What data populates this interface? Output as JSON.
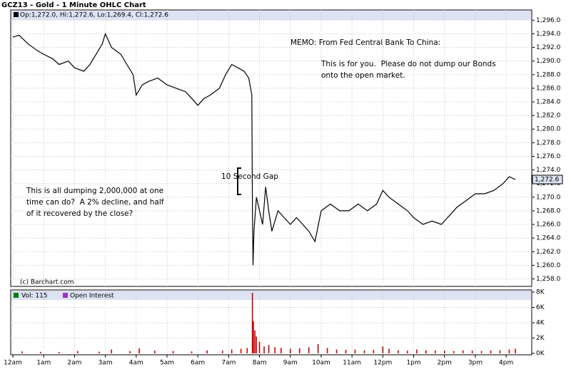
{
  "title": "GCZ13 - Gold - 1 Minute OHLC Chart",
  "chart_data": [
    {
      "type": "line",
      "legend_text": "Op:1,272.0, Hi:1,272.6, Lo:1,269.4, Cl:1,272.6",
      "copyright": "(c) Barchart.com",
      "annotations": [
        "MEMO: From Fed Central Bank To China:",
        "This is for you.  Please do not dump our Bonds",
        "onto the open market.",
        "10 Second Gap",
        "This is all dumping 2,000,000 at one",
        "time can do?  A 2% decline, and half",
        "of it recovered by the close?"
      ],
      "last_value": {
        "value": 1272.6,
        "label": "1,272.6"
      },
      "xlim": [
        -0.07,
        16.83
      ],
      "ylim": [
        1256.9,
        1297.5
      ],
      "grid": true,
      "xticks": [
        {
          "value": 0,
          "label": "12am"
        },
        {
          "value": 1,
          "label": "1am"
        },
        {
          "value": 2,
          "label": "2am"
        },
        {
          "value": 3,
          "label": "3am"
        },
        {
          "value": 4,
          "label": "4am"
        },
        {
          "value": 5,
          "label": "5am"
        },
        {
          "value": 6,
          "label": "6am"
        },
        {
          "value": 7,
          "label": "7am"
        },
        {
          "value": 8,
          "label": "8am"
        },
        {
          "value": 9,
          "label": "9am"
        },
        {
          "value": 10,
          "label": "10am"
        },
        {
          "value": 11,
          "label": "11am"
        },
        {
          "value": 12,
          "label": "12pm"
        },
        {
          "value": 13,
          "label": "1pm"
        },
        {
          "value": 14,
          "label": "2pm"
        },
        {
          "value": 15,
          "label": "3pm"
        },
        {
          "value": 16,
          "label": "4pm"
        }
      ],
      "yticks": [
        {
          "value": 1258,
          "label": "1,258.0"
        },
        {
          "value": 1260,
          "label": "1,260.0"
        },
        {
          "value": 1262,
          "label": "1,262.0"
        },
        {
          "value": 1264,
          "label": "1,264.0"
        },
        {
          "value": 1266,
          "label": "1,266.0"
        },
        {
          "value": 1268,
          "label": "1,268.0"
        },
        {
          "value": 1270,
          "label": "1,270.0"
        },
        {
          "value": 1272,
          "label": "1,272.0"
        },
        {
          "value": 1274,
          "label": "1,274.0"
        },
        {
          "value": 1276,
          "label": "1,276.0"
        },
        {
          "value": 1278,
          "label": "1,278.0"
        },
        {
          "value": 1280,
          "label": "1,280.0"
        },
        {
          "value": 1282,
          "label": "1,282.0"
        },
        {
          "value": 1284,
          "label": "1,284.0"
        },
        {
          "value": 1286,
          "label": "1,286.0"
        },
        {
          "value": 1288,
          "label": "1,288.0"
        },
        {
          "value": 1290,
          "label": "1,290.0"
        },
        {
          "value": 1292,
          "label": "1,292.0"
        },
        {
          "value": 1294,
          "label": "1,294.0"
        },
        {
          "value": 1296,
          "label": "1,296.0"
        }
      ],
      "series": [
        {
          "color": "#000000",
          "x": [
            0,
            0.2,
            0.5,
            0.8,
            1,
            1.3,
            1.5,
            1.8,
            2,
            2.3,
            2.5,
            2.7,
            2.9,
            3,
            3.2,
            3.5,
            3.7,
            3.9,
            4,
            4.2,
            4.4,
            4.7,
            5,
            5.3,
            5.6,
            5.8,
            6,
            6.2,
            6.4,
            6.7,
            6.9,
            7.1,
            7.3,
            7.5,
            7.65,
            7.75,
            7.77,
            7.79,
            7.82,
            7.9,
            8,
            8.1,
            8.2,
            8.3,
            8.4,
            8.6,
            8.8,
            9,
            9.2,
            9.4,
            9.6,
            9.8,
            10,
            10.3,
            10.6,
            10.9,
            11.2,
            11.5,
            11.8,
            12,
            12.2,
            12.5,
            12.8,
            13,
            13.3,
            13.6,
            13.9,
            14.1,
            14.4,
            14.7,
            15,
            15.3,
            15.6,
            15.9,
            16.1,
            16.3
          ],
          "values": [
            1293.5,
            1293.8,
            1292.5,
            1291.5,
            1291,
            1290.3,
            1289.5,
            1290,
            1289,
            1288.5,
            1289.5,
            1291,
            1292.5,
            1294,
            1292,
            1291,
            1289.5,
            1288,
            1285,
            1286.5,
            1287,
            1287.5,
            1286.5,
            1286,
            1285.5,
            1284.5,
            1283.5,
            1284.5,
            1285,
            1286,
            1288,
            1289.5,
            1289,
            1288.5,
            1287.5,
            1285,
            1268,
            1260,
            1265,
            1270,
            1268,
            1266,
            1271.5,
            1268,
            1265,
            1268,
            1267,
            1266,
            1267,
            1266,
            1265,
            1263.5,
            1268,
            1269,
            1268,
            1268,
            1269,
            1268,
            1269,
            1271,
            1270,
            1269,
            1268,
            1267,
            1266,
            1266.5,
            1266,
            1267,
            1268.5,
            1269.5,
            1270.5,
            1270.5,
            1271,
            1272,
            1273,
            1272.6
          ]
        }
      ]
    },
    {
      "type": "bar",
      "volume_label": "Vol: 115",
      "oi_label": "Open Interest",
      "vol_color": "#008000",
      "oi_color": "#9933cc",
      "ylim": [
        0,
        8000
      ],
      "yticks": [
        {
          "value": 0,
          "label": "0K"
        },
        {
          "value": 2000,
          "label": "2K"
        },
        {
          "value": 4000,
          "label": "4K"
        },
        {
          "value": 6000,
          "label": "6K"
        },
        {
          "value": 8000,
          "label": "8K"
        }
      ],
      "series": [
        {
          "color": "#cc0000",
          "x": [
            0.3,
            0.9,
            1.5,
            2.1,
            2.8,
            3.2,
            3.8,
            4.1,
            4.6,
            5.2,
            5.8,
            6.3,
            6.8,
            7.1,
            7.4,
            7.6,
            7.77,
            7.8,
            7.85,
            7.9,
            8,
            8.15,
            8.3,
            8.5,
            8.7,
            9,
            9.3,
            9.6,
            9.9,
            10.2,
            10.5,
            10.8,
            11.1,
            11.4,
            11.7,
            12,
            12.2,
            12.5,
            12.8,
            13.1,
            13.4,
            13.7,
            14,
            14.3,
            14.6,
            14.9,
            15.2,
            15.5,
            15.8,
            16.1,
            16.3
          ],
          "values": [
            250,
            200,
            180,
            300,
            220,
            500,
            280,
            650,
            350,
            300,
            260,
            400,
            350,
            500,
            600,
            700,
            7900,
            4200,
            3000,
            2200,
            1500,
            900,
            1100,
            800,
            700,
            600,
            650,
            800,
            1200,
            700,
            500,
            450,
            500,
            400,
            450,
            900,
            600,
            400,
            350,
            500,
            400,
            380,
            350,
            300,
            400,
            350,
            300,
            350,
            400,
            500,
            600
          ]
        }
      ]
    }
  ]
}
